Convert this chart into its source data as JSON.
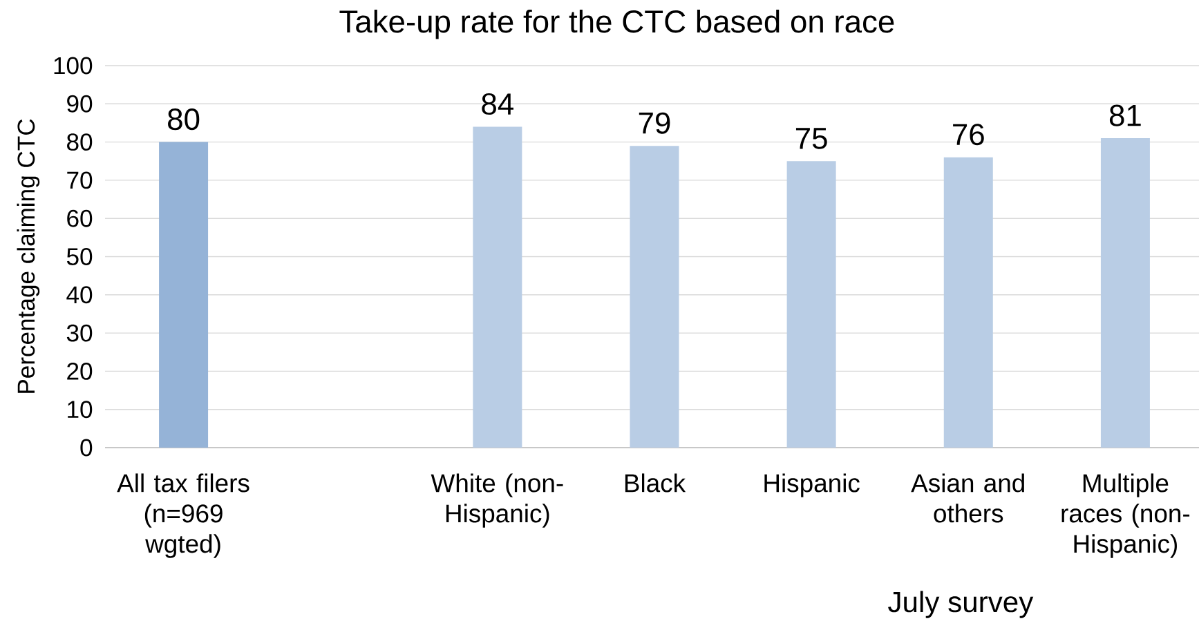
{
  "chart_data": {
    "type": "bar",
    "title": "Take-up rate for the CTC based on race",
    "xlabel": "July survey",
    "ylabel": "Percentage claiming CTC",
    "categories": [
      "All tax filers (n=969 wgted)",
      null,
      "White (non-Hispanic)",
      "Black",
      "Hispanic",
      "Asian and others",
      "Multiple races (non-Hispanic)"
    ],
    "values": [
      80,
      null,
      84,
      79,
      75,
      76,
      81
    ],
    "colors": [
      "#95b3d7",
      "#b9cde5",
      "#b9cde5",
      "#b9cde5",
      "#b9cde5",
      "#b9cde5",
      "#b9cde5"
    ],
    "ylim": [
      0,
      100
    ],
    "yticks": [
      0,
      10,
      20,
      30,
      40,
      50,
      60,
      70,
      80,
      90,
      100
    ],
    "grid": "y",
    "data_labels": true
  }
}
